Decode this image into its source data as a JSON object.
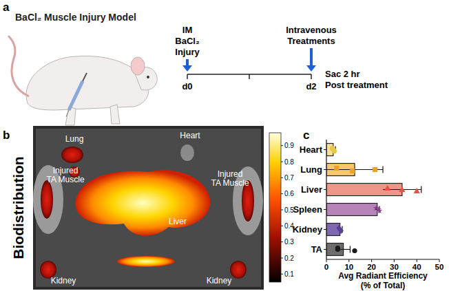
{
  "panel_a": {
    "label": "a",
    "title": "BaCl₂ Muscle Injury Model",
    "injury": [
      "IM",
      "BaCl₂",
      "Injury"
    ],
    "treatment": [
      "Intravenous",
      "Treatments"
    ],
    "days": [
      "d0",
      "d2"
    ],
    "end": [
      "Sac 2 hr",
      "Post treatment"
    ]
  },
  "panel_b": {
    "label": "b",
    "side_title": "Biodistribution",
    "organ_labels": [
      [
        "Lung"
      ],
      [
        "Heart"
      ],
      [
        "Injured",
        "TA Muscle"
      ],
      [
        "Injured",
        "TA Muscle"
      ],
      [
        "Liver"
      ],
      [
        "Kidney"
      ],
      [
        "Kidney"
      ]
    ],
    "colorbar": {
      "range": [
        0.05,
        0.98
      ],
      "ticks": [
        0.9,
        0.8,
        0.7,
        0.6,
        0.5,
        0.4,
        0.3,
        0.2,
        0.1
      ]
    }
  },
  "panel_c": {
    "label": "c"
  },
  "chart_data": {
    "type": "bar",
    "orientation": "horizontal",
    "categories": [
      "Heart",
      "Lung",
      "Liver",
      "Spleen",
      "Kidney",
      "TA"
    ],
    "values": [
      3,
      12.5,
      33.5,
      22.5,
      6,
      7.5
    ],
    "errors": [
      1,
      12.5,
      8.5,
      1,
      1,
      3
    ],
    "points": [
      [
        2.5,
        3,
        3.5
      ],
      [
        4.5,
        21.5,
        11.5
      ],
      [
        27,
        33.5,
        40
      ],
      [
        22,
        23,
        23.5
      ],
      [
        5.5,
        6,
        6.5
      ],
      [
        5,
        5,
        12.5
      ]
    ],
    "colors": [
      "#f7e28f",
      "#f8c86b",
      "#f0958a",
      "#b784b8",
      "#8068b0",
      "#6d6d6d"
    ],
    "xlim": [
      0,
      50
    ],
    "xticks": [
      0,
      10,
      20,
      30,
      40,
      50
    ],
    "xlabel": "Avg Radiant Efficiency\n(% of Total)"
  }
}
